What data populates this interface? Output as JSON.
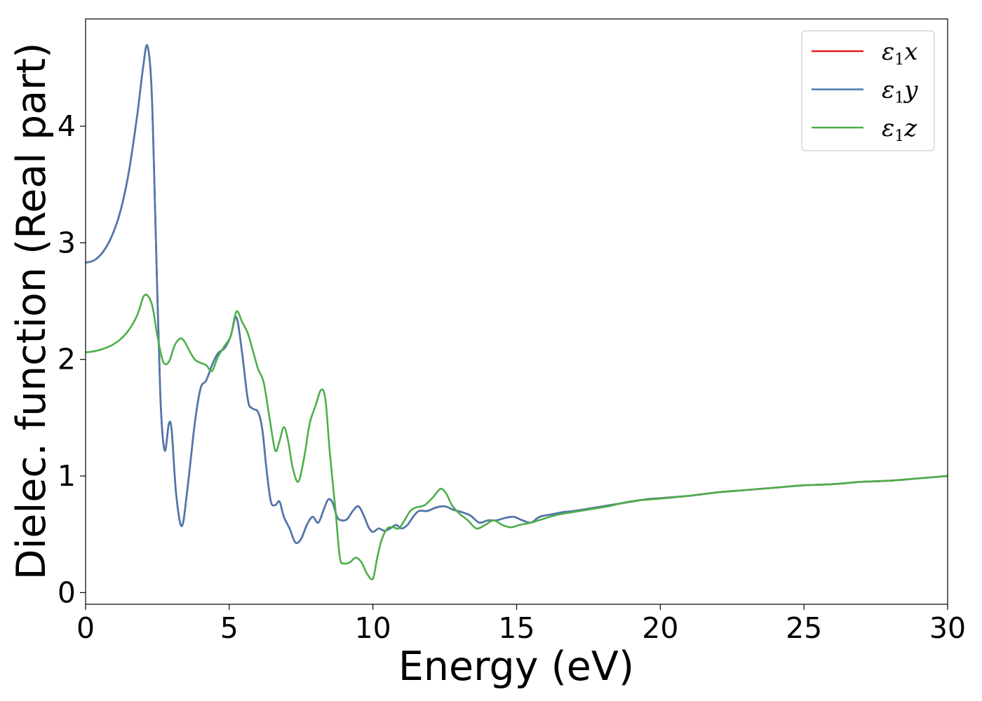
{
  "chart_data": {
    "type": "line",
    "xlabel": "Energy (eV)",
    "ylabel": "Dielec. function (Real part)",
    "xlim": [
      0,
      30
    ],
    "ylim": [
      -0.1,
      4.92
    ],
    "xticks": [
      0,
      5,
      10,
      15,
      20,
      25,
      30
    ],
    "yticks": [
      0,
      1,
      2,
      3,
      4
    ],
    "grid": false,
    "legend_position": "top-right",
    "series": [
      {
        "name": "ε1x",
        "legend": {
          "base": "ε",
          "sub": "1",
          "tail": "x"
        },
        "color": "#e41a1c",
        "x": [
          0,
          0.3,
          0.6,
          0.9,
          1.2,
          1.5,
          1.8,
          2.0,
          2.15,
          2.3,
          2.45,
          2.6,
          2.75,
          2.9,
          3.0,
          3.15,
          3.35,
          3.55,
          3.8,
          4.0,
          4.2,
          4.4,
          4.6,
          4.85,
          5.05,
          5.25,
          5.45,
          5.65,
          5.8,
          6.0,
          6.15,
          6.3,
          6.45,
          6.6,
          6.75,
          6.9,
          7.1,
          7.3,
          7.5,
          7.7,
          7.9,
          8.1,
          8.3,
          8.45,
          8.6,
          8.75,
          8.9,
          9.1,
          9.3,
          9.5,
          9.7,
          9.85,
          10.0,
          10.2,
          10.4,
          10.6,
          10.8,
          11.0,
          11.2,
          11.4,
          11.6,
          11.9,
          12.2,
          12.5,
          12.8,
          13.1,
          13.4,
          13.7,
          14.0,
          14.3,
          14.6,
          14.9,
          15.2,
          15.5,
          15.8,
          16.2,
          16.6,
          17.0,
          17.5,
          18.0,
          18.5,
          19.0,
          19.5,
          20.0,
          21.0,
          22.0,
          23.0,
          24.0,
          25.0,
          26.0,
          27.0,
          28.0,
          29.0,
          30.0
        ],
        "y": [
          2.83,
          2.85,
          2.92,
          3.05,
          3.26,
          3.6,
          4.1,
          4.5,
          4.69,
          4.3,
          3.0,
          1.7,
          1.22,
          1.45,
          1.38,
          0.85,
          0.57,
          0.9,
          1.45,
          1.75,
          1.82,
          1.95,
          2.05,
          2.1,
          2.2,
          2.36,
          2.05,
          1.65,
          1.58,
          1.55,
          1.4,
          1.05,
          0.78,
          0.75,
          0.78,
          0.65,
          0.55,
          0.43,
          0.46,
          0.58,
          0.65,
          0.6,
          0.72,
          0.8,
          0.77,
          0.65,
          0.62,
          0.63,
          0.7,
          0.74,
          0.65,
          0.56,
          0.52,
          0.55,
          0.53,
          0.55,
          0.58,
          0.55,
          0.58,
          0.65,
          0.7,
          0.7,
          0.73,
          0.74,
          0.71,
          0.69,
          0.66,
          0.6,
          0.62,
          0.62,
          0.64,
          0.65,
          0.62,
          0.6,
          0.65,
          0.67,
          0.69,
          0.7,
          0.72,
          0.74,
          0.76,
          0.78,
          0.8,
          0.81,
          0.83,
          0.86,
          0.88,
          0.9,
          0.92,
          0.93,
          0.95,
          0.96,
          0.98,
          1.0
        ]
      },
      {
        "name": "ε1y",
        "legend": {
          "base": "ε",
          "sub": "1",
          "tail": "y"
        },
        "color": "#4a7ab0",
        "x": [
          0,
          0.3,
          0.6,
          0.9,
          1.2,
          1.5,
          1.8,
          2.0,
          2.15,
          2.3,
          2.45,
          2.6,
          2.75,
          2.9,
          3.0,
          3.15,
          3.35,
          3.55,
          3.8,
          4.0,
          4.2,
          4.4,
          4.6,
          4.85,
          5.05,
          5.25,
          5.45,
          5.65,
          5.8,
          6.0,
          6.15,
          6.3,
          6.45,
          6.6,
          6.75,
          6.9,
          7.1,
          7.3,
          7.5,
          7.7,
          7.9,
          8.1,
          8.3,
          8.45,
          8.6,
          8.75,
          8.9,
          9.1,
          9.3,
          9.5,
          9.7,
          9.85,
          10.0,
          10.2,
          10.4,
          10.6,
          10.8,
          11.0,
          11.2,
          11.4,
          11.6,
          11.9,
          12.2,
          12.5,
          12.8,
          13.1,
          13.4,
          13.7,
          14.0,
          14.3,
          14.6,
          14.9,
          15.2,
          15.5,
          15.8,
          16.2,
          16.6,
          17.0,
          17.5,
          18.0,
          18.5,
          19.0,
          19.5,
          20.0,
          21.0,
          22.0,
          23.0,
          24.0,
          25.0,
          26.0,
          27.0,
          28.0,
          29.0,
          30.0
        ],
        "y": [
          2.83,
          2.85,
          2.92,
          3.05,
          3.26,
          3.6,
          4.1,
          4.5,
          4.69,
          4.3,
          3.0,
          1.7,
          1.22,
          1.45,
          1.38,
          0.85,
          0.57,
          0.9,
          1.45,
          1.75,
          1.82,
          1.95,
          2.05,
          2.1,
          2.2,
          2.36,
          2.05,
          1.65,
          1.58,
          1.55,
          1.4,
          1.05,
          0.78,
          0.75,
          0.78,
          0.65,
          0.55,
          0.43,
          0.46,
          0.58,
          0.65,
          0.6,
          0.72,
          0.8,
          0.77,
          0.65,
          0.62,
          0.63,
          0.7,
          0.74,
          0.65,
          0.56,
          0.52,
          0.55,
          0.53,
          0.55,
          0.58,
          0.55,
          0.58,
          0.65,
          0.7,
          0.7,
          0.73,
          0.74,
          0.71,
          0.69,
          0.66,
          0.6,
          0.62,
          0.62,
          0.64,
          0.65,
          0.62,
          0.6,
          0.65,
          0.67,
          0.69,
          0.7,
          0.72,
          0.74,
          0.76,
          0.78,
          0.8,
          0.81,
          0.83,
          0.86,
          0.88,
          0.9,
          0.92,
          0.93,
          0.95,
          0.96,
          0.98,
          1.0
        ]
      },
      {
        "name": "ε1z",
        "legend": {
          "base": "ε",
          "sub": "1",
          "tail": "z"
        },
        "color": "#4daf4a",
        "x": [
          0,
          0.3,
          0.6,
          0.9,
          1.2,
          1.5,
          1.8,
          2.05,
          2.3,
          2.5,
          2.7,
          2.9,
          3.1,
          3.3,
          3.45,
          3.6,
          3.8,
          4.0,
          4.2,
          4.4,
          4.6,
          4.85,
          5.05,
          5.25,
          5.45,
          5.65,
          5.85,
          6.0,
          6.2,
          6.4,
          6.6,
          6.75,
          6.9,
          7.05,
          7.2,
          7.4,
          7.6,
          7.8,
          8.0,
          8.2,
          8.35,
          8.5,
          8.7,
          8.85,
          9.0,
          9.2,
          9.4,
          9.6,
          9.8,
          10.0,
          10.15,
          10.3,
          10.5,
          10.7,
          10.9,
          11.1,
          11.3,
          11.5,
          11.8,
          12.1,
          12.35,
          12.55,
          12.75,
          13.0,
          13.3,
          13.6,
          13.9,
          14.2,
          14.5,
          14.8,
          15.1,
          15.5,
          15.9,
          16.3,
          16.7,
          17.2,
          17.7,
          18.2,
          18.7,
          19.2,
          19.7,
          20.2,
          21.0,
          22.0,
          23.0,
          24.0,
          25.0,
          26.0,
          27.0,
          28.0,
          29.0,
          30.0
        ],
        "y": [
          2.06,
          2.07,
          2.09,
          2.12,
          2.17,
          2.25,
          2.38,
          2.55,
          2.48,
          2.2,
          1.98,
          1.98,
          2.12,
          2.18,
          2.15,
          2.08,
          2.0,
          1.97,
          1.95,
          1.9,
          2.02,
          2.12,
          2.2,
          2.41,
          2.32,
          2.22,
          2.05,
          1.92,
          1.8,
          1.5,
          1.22,
          1.3,
          1.42,
          1.3,
          1.08,
          0.95,
          1.15,
          1.45,
          1.6,
          1.74,
          1.65,
          1.2,
          0.7,
          0.3,
          0.25,
          0.26,
          0.3,
          0.26,
          0.16,
          0.12,
          0.3,
          0.45,
          0.55,
          0.56,
          0.55,
          0.62,
          0.7,
          0.73,
          0.75,
          0.82,
          0.89,
          0.85,
          0.75,
          0.68,
          0.62,
          0.55,
          0.58,
          0.62,
          0.58,
          0.56,
          0.58,
          0.6,
          0.63,
          0.66,
          0.68,
          0.7,
          0.72,
          0.74,
          0.77,
          0.79,
          0.8,
          0.81,
          0.83,
          0.86,
          0.88,
          0.9,
          0.92,
          0.93,
          0.95,
          0.96,
          0.98,
          1.0
        ]
      }
    ]
  }
}
